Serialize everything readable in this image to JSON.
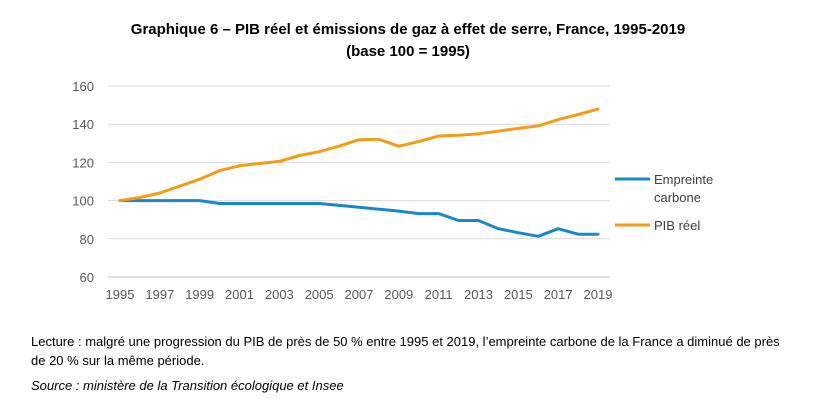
{
  "title_line1": "Graphique 6 – PIB réel et émissions de gaz à effet de serre, France, 1995-2019",
  "title_line2": "(base 100 = 1995)",
  "reading_note": "Lecture : malgré une progression du PIB de près de 50 % entre 1995 et 2019, l’empreinte carbone de la France a diminué de près de 20 % sur la même période.",
  "source": "Source : ministère de la Transition écologique et Insee",
  "chart_data": {
    "type": "line",
    "title": "Graphique 6 – PIB réel et émissions de gaz à effet de serre, France, 1995-2019",
    "subtitle": "(base 100 = 1995)",
    "x": [
      1995,
      1996,
      1997,
      1998,
      1999,
      2000,
      2001,
      2002,
      2003,
      2004,
      2005,
      2006,
      2007,
      2008,
      2009,
      2010,
      2011,
      2012,
      2013,
      2014,
      2015,
      2016,
      2017,
      2018,
      2019
    ],
    "x_tick_labels": [
      "1995",
      "1997",
      "1999",
      "2001",
      "2003",
      "2005",
      "2007",
      "2009",
      "2011",
      "2013",
      "2015",
      "2017",
      "2019"
    ],
    "y_tick_labels": [
      "60",
      "80",
      "100",
      "120",
      "140",
      "160"
    ],
    "ylim": [
      60,
      160
    ],
    "grid": "horizontal",
    "legend_position": "right",
    "series": [
      {
        "name": "Empreinte carbone",
        "legend_lines": [
          "Empreinte",
          "carbone"
        ],
        "color": "#1a87c9",
        "values": [
          100,
          100,
          100,
          100,
          100,
          98.5,
          98.5,
          98.5,
          98.5,
          98.5,
          98.5,
          97.5,
          96.5,
          95.5,
          94.5,
          93.2,
          93.2,
          89.6,
          89.6,
          85.3,
          83.2,
          81.3,
          85.3,
          82.4,
          82.4
        ]
      },
      {
        "name": "PIB réel",
        "legend_lines": [
          "PIB réel"
        ],
        "color": "#f39c1a",
        "values": [
          100,
          101.6,
          104,
          107.6,
          111.2,
          115.7,
          118.2,
          119.4,
          120.5,
          123.6,
          125.6,
          128.5,
          131.9,
          132.1,
          128.5,
          130.9,
          133.8,
          134.2,
          135,
          136.4,
          137.8,
          139.1,
          142.4,
          145.1,
          147.9
        ]
      }
    ]
  }
}
